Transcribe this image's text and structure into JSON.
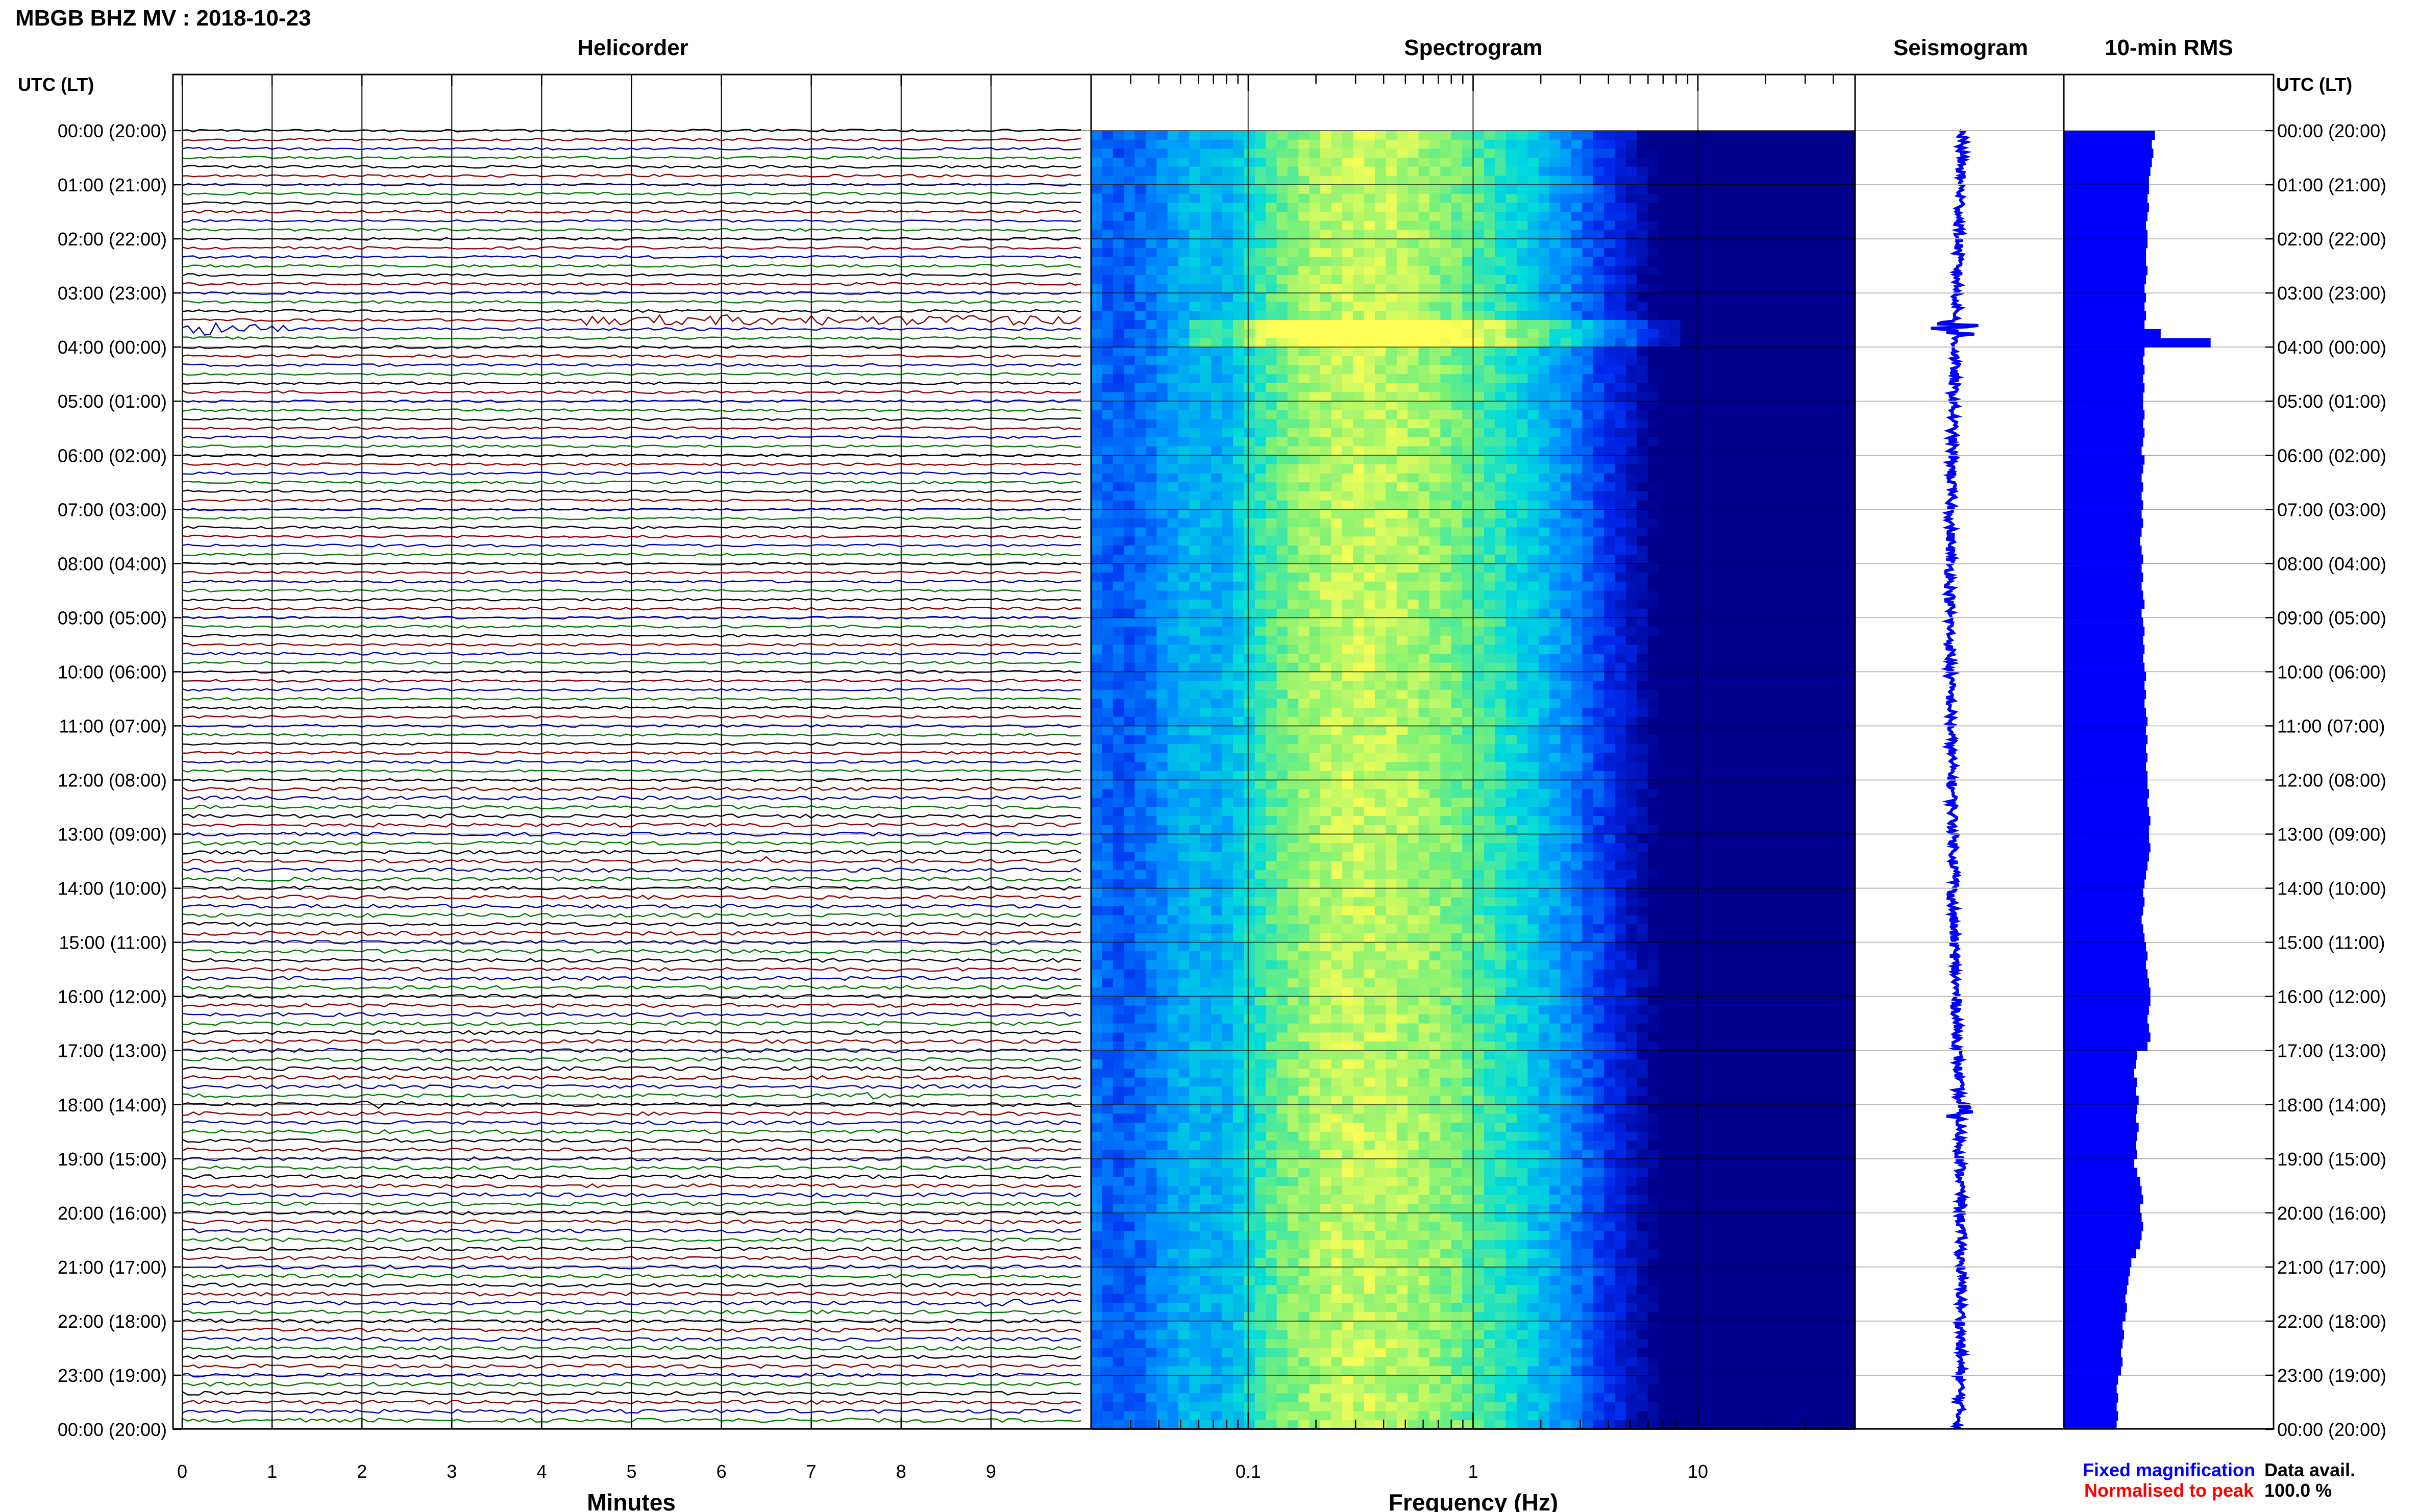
{
  "header": {
    "title": "MBGB BHZ MV : 2018-10-23"
  },
  "panels": {
    "helicorder": "Helicorder",
    "spectrogram": "Spectrogram",
    "seismogram": "Seismogram",
    "rms": "10-min RMS"
  },
  "axes": {
    "time_label_left": "UTC (LT)",
    "time_label_right": "UTC (LT)",
    "minutes_label": "Minutes",
    "frequency_label": "Frequency (Hz)"
  },
  "legend": {
    "fixed": "Fixed magnification",
    "fixed_color": "#0000ff",
    "normalised": "Normalised to peak",
    "normalised_color": "#ff0000"
  },
  "availability": {
    "label": "Data avail.",
    "value": "100.0 %"
  },
  "colors": {
    "trace_black": "#000000",
    "trace_red": "#8b0000",
    "trace_blue": "#0000a8",
    "trace_green": "#007a00",
    "rms_fill": "#0000ff",
    "spec_low": "#0000aa",
    "spec_high": "#ffff55"
  },
  "chart_data": [
    {
      "type": "line",
      "title": "Helicorder",
      "xlabel": "Minutes",
      "xticks": [
        "0",
        "1",
        "2",
        "3",
        "4",
        "5",
        "6",
        "7",
        "8",
        "9"
      ],
      "xlim": [
        0,
        10
      ],
      "yticks": [
        "00:00 (20:00)",
        "01:00 (21:00)",
        "02:00 (22:00)",
        "03:00 (23:00)",
        "04:00 (00:00)",
        "05:00 (01:00)",
        "06:00 (02:00)",
        "07:00 (03:00)",
        "08:00 (04:00)",
        "09:00 (05:00)",
        "10:00 (06:00)",
        "11:00 (07:00)",
        "12:00 (08:00)",
        "13:00 (09:00)",
        "14:00 (10:00)",
        "15:00 (11:00)",
        "16:00 (12:00)",
        "17:00 (13:00)",
        "18:00 (14:00)",
        "19:00 (15:00)",
        "20:00 (16:00)",
        "21:00 (17:00)",
        "22:00 (18:00)",
        "23:00 (19:00)",
        "00:00 (20:00)"
      ],
      "traces_per_hour": 6,
      "events": [
        {
          "hour": 3.6,
          "minute_start": 0.0,
          "minute_end": 1.2,
          "amplitude": 4
        },
        {
          "hour": 3.5,
          "minute_start": 4.5,
          "minute_end": 10.0,
          "amplitude": 3
        },
        {
          "hour": 13.5,
          "minute_start": 6.4,
          "minute_end": 6.6,
          "amplitude": 2
        },
        {
          "hour": 18.0,
          "minute_start": 2.0,
          "minute_end": 2.5,
          "amplitude": 2
        },
        {
          "hour": 17.8,
          "minute_start": 7.5,
          "minute_end": 7.8,
          "amplitude": 2
        },
        {
          "hour": 21.6,
          "minute_start": 8.9,
          "minute_end": 10.0,
          "amplitude": 1.5
        }
      ]
    },
    {
      "type": "heatmap",
      "title": "Spectrogram",
      "xlabel": "Frequency (Hz)",
      "xscale": "log",
      "xticks": [
        "0.1",
        "1",
        "10"
      ],
      "xlim": [
        0.02,
        50
      ],
      "peak_frequency_hz": 0.3
    },
    {
      "type": "line",
      "title": "Seismogram",
      "events": [
        {
          "hour": 3.65,
          "amplitude": 4
        },
        {
          "hour": 18.1,
          "amplitude": 1.5
        }
      ]
    },
    {
      "type": "bar",
      "title": "10-min RMS",
      "orientation": "horizontal",
      "interval_minutes": 10,
      "values": [
        0.62,
        0.6,
        0.61,
        0.6,
        0.59,
        0.58,
        0.58,
        0.57,
        0.58,
        0.57,
        0.56,
        0.57,
        0.57,
        0.56,
        0.56,
        0.57,
        0.56,
        0.55,
        0.56,
        0.55,
        0.56,
        0.55,
        0.66,
        1.0,
        0.55,
        0.54,
        0.55,
        0.54,
        0.55,
        0.54,
        0.54,
        0.55,
        0.54,
        0.55,
        0.54,
        0.53,
        0.55,
        0.54,
        0.53,
        0.54,
        0.53,
        0.54,
        0.53,
        0.54,
        0.53,
        0.52,
        0.53,
        0.54,
        0.53,
        0.54,
        0.53,
        0.54,
        0.55,
        0.53,
        0.54,
        0.55,
        0.54,
        0.55,
        0.54,
        0.55,
        0.56,
        0.55,
        0.56,
        0.55,
        0.56,
        0.57,
        0.56,
        0.57,
        0.56,
        0.57,
        0.56,
        0.57,
        0.57,
        0.58,
        0.57,
        0.58,
        0.59,
        0.58,
        0.58,
        0.59,
        0.58,
        0.57,
        0.56,
        0.55,
        0.54,
        0.55,
        0.54,
        0.53,
        0.54,
        0.55,
        0.56,
        0.57,
        0.56,
        0.57,
        0.58,
        0.59,
        0.59,
        0.58,
        0.57,
        0.58,
        0.59,
        0.57,
        0.5,
        0.49,
        0.48,
        0.5,
        0.49,
        0.51,
        0.5,
        0.49,
        0.51,
        0.5,
        0.49,
        0.5,
        0.48,
        0.5,
        0.52,
        0.53,
        0.54,
        0.52,
        0.53,
        0.54,
        0.53,
        0.52,
        0.49,
        0.46,
        0.45,
        0.44,
        0.43,
        0.42,
        0.43,
        0.42,
        0.4,
        0.41,
        0.4,
        0.39,
        0.4,
        0.39,
        0.37,
        0.36,
        0.37,
        0.36,
        0.37,
        0.36
      ]
    }
  ]
}
